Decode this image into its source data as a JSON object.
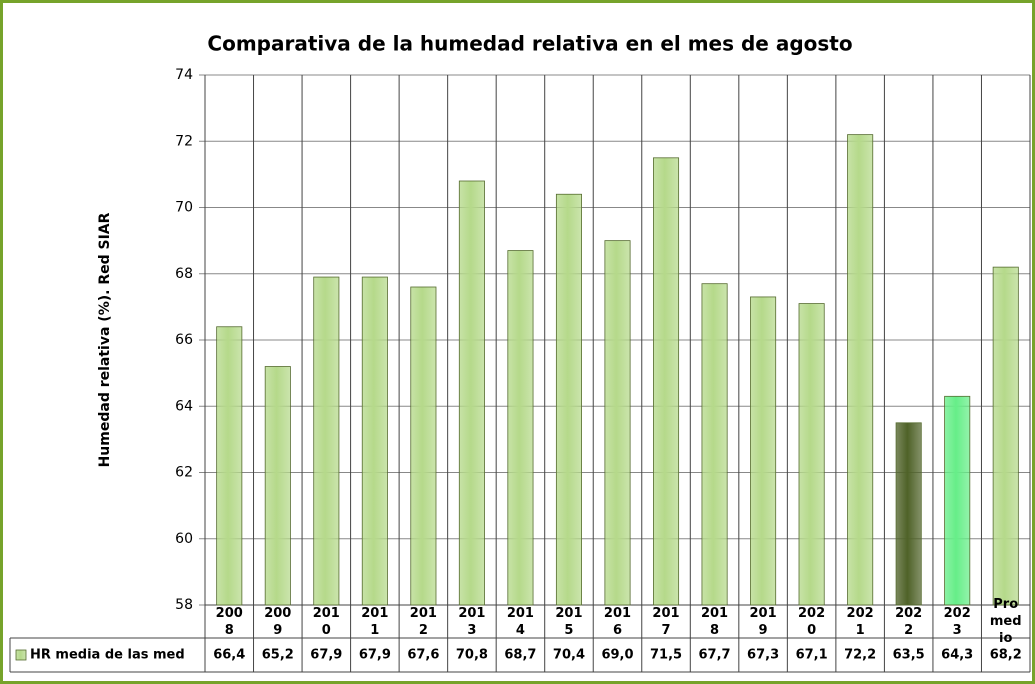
{
  "chart_data": {
    "type": "bar",
    "title": "Comparativa de la humedad relativa en el mes de  agosto",
    "y_label": "Humedad relativa (%). Red SIAR",
    "categories": [
      "2008",
      "2009",
      "2010",
      "2011",
      "2012",
      "2013",
      "2014",
      "2015",
      "2016",
      "2017",
      "2018",
      "2019",
      "2020",
      "2021",
      "2022",
      "2023",
      "Promedio"
    ],
    "series": [
      {
        "name": "HR media de las med",
        "color": "#b5d98a",
        "values": [
          66.4,
          65.2,
          67.9,
          67.9,
          67.6,
          70.8,
          68.7,
          70.4,
          69.0,
          71.5,
          67.7,
          67.3,
          67.1,
          72.2,
          63.5,
          64.3,
          68.2
        ],
        "value_labels": [
          "66,4",
          "65,2",
          "67,9",
          "67,9",
          "67,6",
          "70,8",
          "68,7",
          "70,4",
          "69,0",
          "71,5",
          "67,7",
          "67,3",
          "67,1",
          "72,2",
          "63,5",
          "64,3",
          "68,2"
        ],
        "colors": [
          "#b5d98a",
          "#b5d98a",
          "#b5d98a",
          "#b5d98a",
          "#b5d98a",
          "#b5d98a",
          "#b5d98a",
          "#b5d98a",
          "#b5d98a",
          "#b5d98a",
          "#b5d98a",
          "#b5d98a",
          "#b5d98a",
          "#b5d98a",
          "#4f6228",
          "#66ee88",
          "#b5d98a"
        ]
      }
    ],
    "ylim": [
      58,
      74
    ],
    "yticks": [
      58,
      60,
      62,
      64,
      66,
      68,
      70,
      72,
      74
    ],
    "grid": true
  }
}
